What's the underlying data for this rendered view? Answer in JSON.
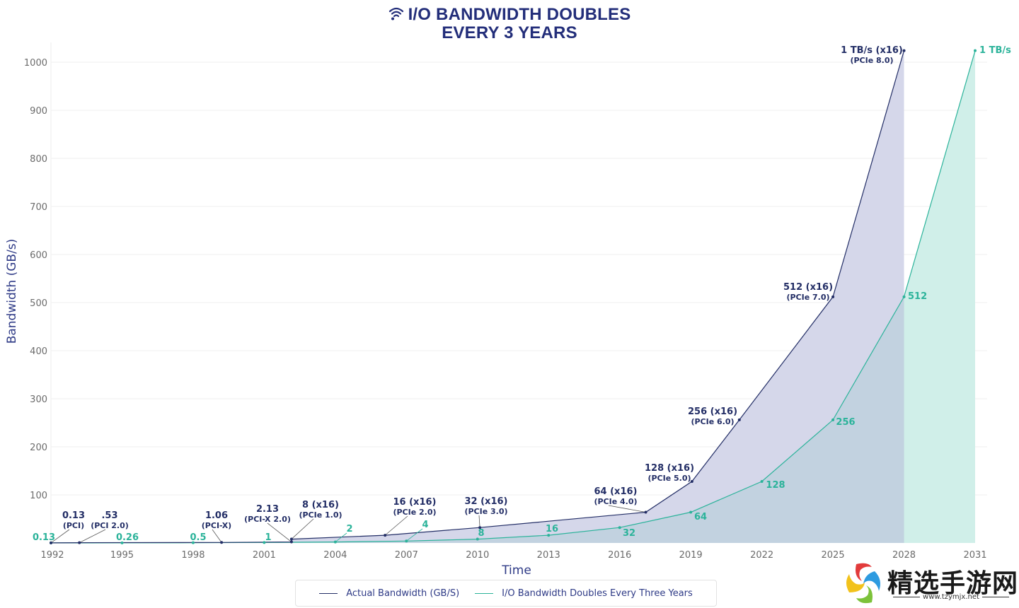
{
  "title": {
    "icon": "wifi-icon",
    "line1": "I/O BANDWIDTH DOUBLES",
    "line2": "EVERY 3 YEARS"
  },
  "colors": {
    "actual": "#232e66",
    "actual_fill": "#d5d7ea",
    "trend": "#2bb39a",
    "trend_fill": "#d0efe9",
    "overlap_fill": "#c2d2e0",
    "title": "#232e7a"
  },
  "legend": {
    "items": [
      {
        "label": "Actual Bandwidth (GB/S)",
        "color": "#232e66"
      },
      {
        "label": "I/O Bandwidth Doubles Every Three Years",
        "color": "#2bb39a"
      }
    ]
  },
  "watermark": {
    "text": "精选手游网",
    "url": "www.tzymjx.net"
  },
  "chart_data": {
    "type": "area",
    "title": "I/O BANDWIDTH DOUBLES EVERY 3 YEARS",
    "xlabel": "Time",
    "ylabel": "Bandwidth (GB/s)",
    "xlim": [
      1992,
      2031
    ],
    "ylim": [
      0,
      1040
    ],
    "x_ticks": [
      1992,
      1995,
      1998,
      2001,
      2004,
      2007,
      2010,
      2013,
      2016,
      2019,
      2022,
      2025,
      2028,
      2031
    ],
    "y_ticks": [
      100,
      200,
      300,
      400,
      500,
      600,
      700,
      800,
      900,
      1000
    ],
    "grid": true,
    "legend_position": "bottom-center",
    "series": [
      {
        "name": "Actual Bandwidth (GB/S)",
        "points": [
          {
            "x": 1992,
            "y": 0.13,
            "label": "0.13",
            "sub": "(PCI)"
          },
          {
            "x": 1993.2,
            "y": 0.53,
            "label": ".53",
            "sub": "(PCI 2.0)"
          },
          {
            "x": 1999.2,
            "y": 1.06,
            "label": "1.06",
            "sub": "(PCI-X)"
          },
          {
            "x": 2002.15,
            "y": 2.13,
            "label": "2.13",
            "sub": "(PCI-X 2.0)"
          },
          {
            "x": 2002.15,
            "y": 8,
            "label": "8 (x16)",
            "sub": "(PCIe 1.0)"
          },
          {
            "x": 2006.1,
            "y": 16,
            "label": "16 (x16)",
            "sub": "(PCIe 2.0)"
          },
          {
            "x": 2010.1,
            "y": 32,
            "label": "32 (x16)",
            "sub": "(PCIe 3.0)"
          },
          {
            "x": 2017.1,
            "y": 64,
            "label": "64 (x16)",
            "sub": "(PCIe 4.0)"
          },
          {
            "x": 2019.05,
            "y": 128,
            "label": "128 (x16)",
            "sub": "(PCIe 5.0)"
          },
          {
            "x": 2021.05,
            "y": 256,
            "label": "256 (x16)",
            "sub": "(PCIe 6.0)"
          },
          {
            "x": 2025.0,
            "y": 512,
            "label": "512 (x16)",
            "sub": "(PCIe 7.0)"
          },
          {
            "x": 2028.0,
            "y": 1024,
            "label": "1 TB/s (x16)",
            "sub": "(PCIe 8.0)"
          }
        ]
      },
      {
        "name": "I/O Bandwidth Doubles Every Three Years",
        "points": [
          {
            "x": 1992,
            "y": 0.13,
            "label": "0.13"
          },
          {
            "x": 1995,
            "y": 0.26,
            "label": "0.26"
          },
          {
            "x": 1998,
            "y": 0.5,
            "label": "0.5"
          },
          {
            "x": 2001,
            "y": 1,
            "label": "1"
          },
          {
            "x": 2004,
            "y": 2,
            "label": "2"
          },
          {
            "x": 2007,
            "y": 4,
            "label": "4"
          },
          {
            "x": 2010,
            "y": 8,
            "label": "8"
          },
          {
            "x": 2013,
            "y": 16,
            "label": "16"
          },
          {
            "x": 2016,
            "y": 32,
            "label": "32"
          },
          {
            "x": 2019,
            "y": 64,
            "label": "64"
          },
          {
            "x": 2022,
            "y": 128,
            "label": "128"
          },
          {
            "x": 2025,
            "y": 256,
            "label": "256"
          },
          {
            "x": 2028,
            "y": 512,
            "label": "512"
          },
          {
            "x": 2031,
            "y": 1024,
            "label": "1 TB/s"
          }
        ]
      }
    ]
  }
}
